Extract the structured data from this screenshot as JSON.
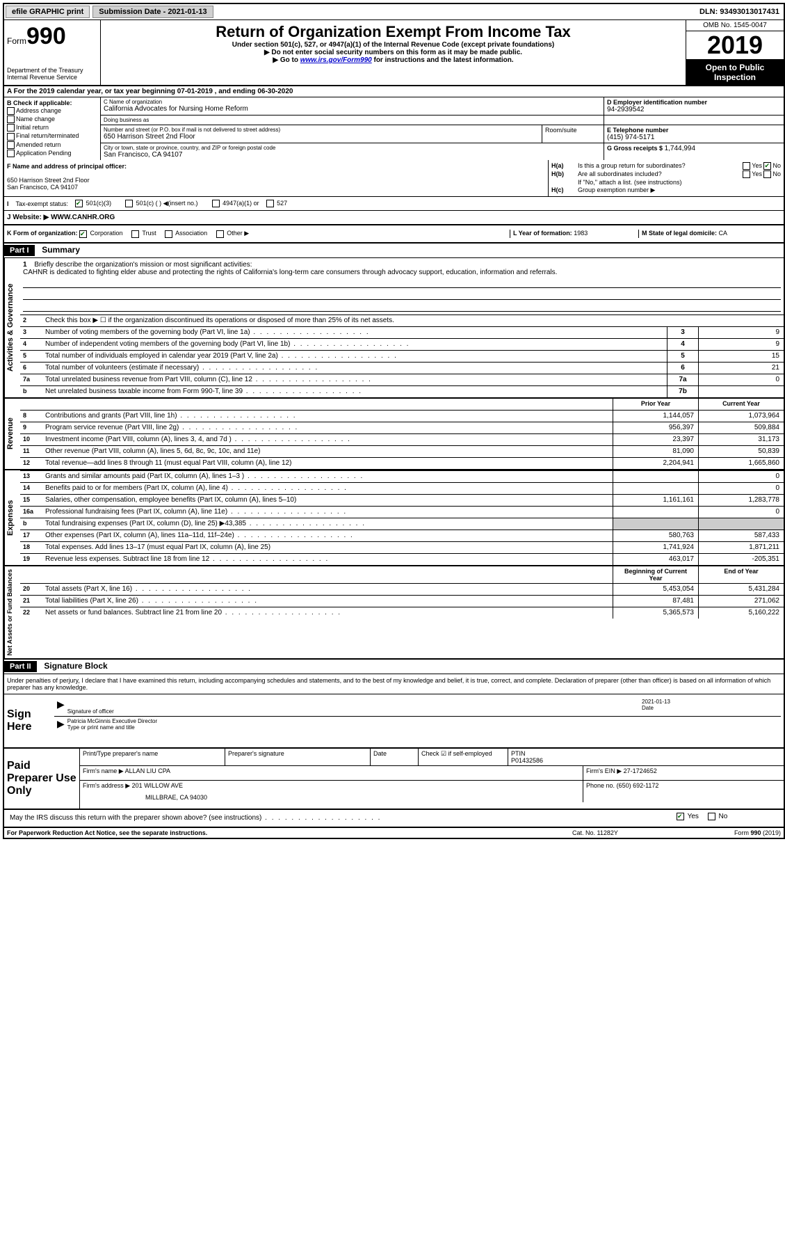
{
  "topbar": {
    "efile_label": "efile GRAPHIC print",
    "submission_label": "Submission Date - 2021-01-13",
    "dln": "DLN: 93493013017431"
  },
  "header": {
    "form_label": "Form",
    "form_number": "990",
    "dept": "Department of the Treasury",
    "irs": "Internal Revenue Service",
    "title": "Return of Organization Exempt From Income Tax",
    "subtitle": "Under section 501(c), 527, or 4947(a)(1) of the Internal Revenue Code (except private foundations)",
    "note1": "▶ Do not enter social security numbers on this form as it may be made public.",
    "note2_prefix": "▶ Go to ",
    "note2_link": "www.irs.gov/Form990",
    "note2_suffix": " for instructions and the latest information.",
    "omb": "OMB No. 1545-0047",
    "year": "2019",
    "open_public": "Open to Public Inspection"
  },
  "section_a": "A For the 2019 calendar year, or tax year beginning 07-01-2019    , and ending 06-30-2020",
  "block_b": {
    "title": "B Check if applicable:",
    "addr_change": "Address change",
    "name_change": "Name change",
    "initial": "Initial return",
    "final": "Final return/terminated",
    "amended": "Amended return",
    "app_pending": "Application Pending"
  },
  "block_c": {
    "name_lbl": "C Name of organization",
    "name_val": "California Advocates for Nursing Home Reform",
    "dba_lbl": "Doing business as",
    "street_lbl": "Number and street (or P.O. box if mail is not delivered to street address)",
    "street_val": "650 Harrison Street 2nd Floor",
    "room_lbl": "Room/suite",
    "city_lbl": "City or town, state or province, country, and ZIP or foreign postal code",
    "city_val": "San Francisco, CA  94107"
  },
  "block_d": {
    "ein_lbl": "D Employer identification number",
    "ein_val": "94-2939542",
    "phone_lbl": "E Telephone number",
    "phone_val": "(415) 974-5171",
    "gross_lbl": "G Gross receipts $",
    "gross_val": "1,744,994"
  },
  "block_f": {
    "lbl": "F Name and address of principal officer:",
    "addr1": "650 Harrison Street 2nd Floor",
    "addr2": "San Francisco, CA  94107"
  },
  "block_h": {
    "ha_lbl": "H(a)",
    "ha_txt": "Is this a group return for subordinates?",
    "hb_lbl": "H(b)",
    "hb_txt": "Are all subordinates included?",
    "hb_note": "If \"No,\" attach a list. (see instructions)",
    "hc_lbl": "H(c)",
    "hc_txt": "Group exemption number ▶",
    "yes": "Yes",
    "no": "No"
  },
  "tax_exempt": {
    "lbl": "Tax-exempt status:",
    "opt1": "501(c)(3)",
    "opt2": "501(c) (   ) ◀(insert no.)",
    "opt3": "4947(a)(1) or",
    "opt4": "527"
  },
  "website": {
    "lbl": "J   Website: ▶",
    "val": "WWW.CANHR.ORG"
  },
  "block_k": {
    "lbl": "K Form of organization:",
    "corp": "Corporation",
    "trust": "Trust",
    "assoc": "Association",
    "other": "Other ▶",
    "l_lbl": "L Year of formation:",
    "l_val": "1983",
    "m_lbl": "M State of legal domicile:",
    "m_val": "CA"
  },
  "part1": {
    "part_lbl": "Part I",
    "title": "Summary",
    "line1_lbl": "1",
    "line1_desc": "Briefly describe the organization's mission or most significant activities:",
    "mission": "CAHNR is dedicated to fighting elder abuse and protecting the rights of California's long-term care consumers through advocacy support, education, information and referrals.",
    "line2_lbl": "2",
    "line2_desc": "Check this box ▶ ☐  if the organization discontinued its operations or disposed of more than 25% of its net assets.",
    "vert_ag": "Activities & Governance",
    "vert_rev": "Revenue",
    "vert_exp": "Expenses",
    "vert_na": "Net Assets or Fund Balances",
    "prior_year": "Prior Year",
    "current_year": "Current Year",
    "beg_year": "Beginning of Current Year",
    "end_year": "End of Year",
    "lines_ag": [
      {
        "num": "3",
        "desc": "Number of voting members of the governing body (Part VI, line 1a)",
        "box": "3",
        "val": "9"
      },
      {
        "num": "4",
        "desc": "Number of independent voting members of the governing body (Part VI, line 1b)",
        "box": "4",
        "val": "9"
      },
      {
        "num": "5",
        "desc": "Total number of individuals employed in calendar year 2019 (Part V, line 2a)",
        "box": "5",
        "val": "15"
      },
      {
        "num": "6",
        "desc": "Total number of volunteers (estimate if necessary)",
        "box": "6",
        "val": "21"
      },
      {
        "num": "7a",
        "desc": "Total unrelated business revenue from Part VIII, column (C), line 12",
        "box": "7a",
        "val": "0"
      },
      {
        "num": "b",
        "desc": "Net unrelated business taxable income from Form 990-T, line 39",
        "box": "7b",
        "val": ""
      }
    ],
    "lines_rev": [
      {
        "num": "8",
        "desc": "Contributions and grants (Part VIII, line 1h)",
        "prior": "1,144,057",
        "curr": "1,073,964"
      },
      {
        "num": "9",
        "desc": "Program service revenue (Part VIII, line 2g)",
        "prior": "956,397",
        "curr": "509,884"
      },
      {
        "num": "10",
        "desc": "Investment income (Part VIII, column (A), lines 3, 4, and 7d )",
        "prior": "23,397",
        "curr": "31,173"
      },
      {
        "num": "11",
        "desc": "Other revenue (Part VIII, column (A), lines 5, 6d, 8c, 9c, 10c, and 11e)",
        "prior": "81,090",
        "curr": "50,839"
      },
      {
        "num": "12",
        "desc": "Total revenue—add lines 8 through 11 (must equal Part VIII, column (A), line 12)",
        "prior": "2,204,941",
        "curr": "1,665,860"
      }
    ],
    "lines_exp": [
      {
        "num": "13",
        "desc": "Grants and similar amounts paid (Part IX, column (A), lines 1–3 )",
        "prior": "",
        "curr": "0"
      },
      {
        "num": "14",
        "desc": "Benefits paid to or for members (Part IX, column (A), line 4)",
        "prior": "",
        "curr": "0"
      },
      {
        "num": "15",
        "desc": "Salaries, other compensation, employee benefits (Part IX, column (A), lines 5–10)",
        "prior": "1,161,161",
        "curr": "1,283,778"
      },
      {
        "num": "16a",
        "desc": "Professional fundraising fees (Part IX, column (A), line 11e)",
        "prior": "",
        "curr": "0"
      },
      {
        "num": "b",
        "desc": "Total fundraising expenses (Part IX, column (D), line 25) ▶43,385",
        "prior": "shaded",
        "curr": "shaded"
      },
      {
        "num": "17",
        "desc": "Other expenses (Part IX, column (A), lines 11a–11d, 11f–24e)",
        "prior": "580,763",
        "curr": "587,433"
      },
      {
        "num": "18",
        "desc": "Total expenses. Add lines 13–17 (must equal Part IX, column (A), line 25)",
        "prior": "1,741,924",
        "curr": "1,871,211"
      },
      {
        "num": "19",
        "desc": "Revenue less expenses. Subtract line 18 from line 12",
        "prior": "463,017",
        "curr": "-205,351"
      }
    ],
    "lines_na": [
      {
        "num": "20",
        "desc": "Total assets (Part X, line 16)",
        "prior": "5,453,054",
        "curr": "5,431,284"
      },
      {
        "num": "21",
        "desc": "Total liabilities (Part X, line 26)",
        "prior": "87,481",
        "curr": "271,062"
      },
      {
        "num": "22",
        "desc": "Net assets or fund balances. Subtract line 21 from line 20",
        "prior": "5,365,573",
        "curr": "5,160,222"
      }
    ]
  },
  "part2": {
    "part_lbl": "Part II",
    "title": "Signature Block",
    "declaration": "Under penalties of perjury, I declare that I have examined this return, including accompanying schedules and statements, and to the best of my knowledge and belief, it is true, correct, and complete. Declaration of preparer (other than officer) is based on all information of which preparer has any knowledge.",
    "sign_here": "Sign Here",
    "sig_officer_lbl": "Signature of officer",
    "sig_date_lbl": "Date",
    "sig_date_val": "2021-01-13",
    "sig_name": "Patricia McGinnis  Executive Director",
    "sig_name_lbl": "Type or print name and title",
    "paid_prep": "Paid Preparer Use Only",
    "prep_name_lbl": "Print/Type preparer's name",
    "prep_sig_lbl": "Preparer's signature",
    "prep_date_lbl": "Date",
    "prep_check_lbl": "Check ☑ if self-employed",
    "ptin_lbl": "PTIN",
    "ptin_val": "P01432586",
    "firm_name_lbl": "Firm's name    ▶",
    "firm_name_val": "ALLAN LIU CPA",
    "firm_ein_lbl": "Firm's EIN ▶",
    "firm_ein_val": "27-1724652",
    "firm_addr_lbl": "Firm's address ▶",
    "firm_addr_val": "201 WILLOW AVE",
    "firm_addr2": "MILLBRAE, CA  94030",
    "firm_phone_lbl": "Phone no.",
    "firm_phone_val": "(650) 692-1172",
    "discuss": "May the IRS discuss this return with the preparer shown above? (see instructions)",
    "yes": "Yes",
    "no": "No"
  },
  "footer": {
    "left": "For Paperwork Reduction Act Notice, see the separate instructions.",
    "mid": "Cat. No. 11282Y",
    "right": "Form 990 (2019)"
  }
}
